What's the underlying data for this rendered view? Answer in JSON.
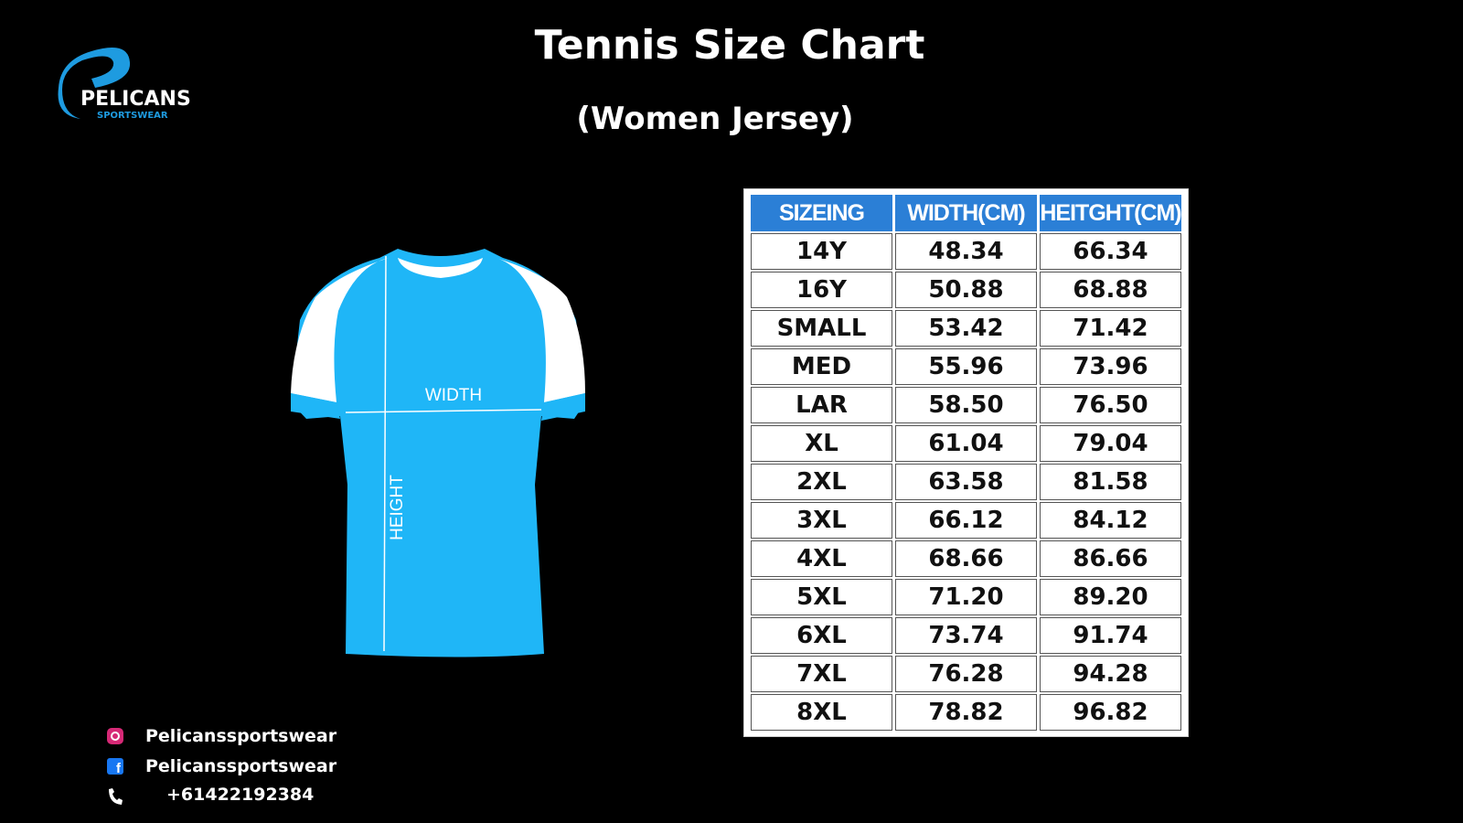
{
  "header": {
    "title": "Tennis Size Chart",
    "subtitle": "(Women Jersey)"
  },
  "logo": {
    "name": "PELICANS",
    "tagline": "SPORTSWEAR"
  },
  "jersey": {
    "width_label": "WIDTH",
    "height_label": "HEIGHT"
  },
  "table": {
    "headers": [
      "SIZEING",
      "WIDTH(CM)",
      "HEITGHT(CM)"
    ],
    "rows": [
      [
        "14Y",
        "48.34",
        "66.34"
      ],
      [
        "16Y",
        "50.88",
        "68.88"
      ],
      [
        "SMALL",
        "53.42",
        "71.42"
      ],
      [
        "MED",
        "55.96",
        "73.96"
      ],
      [
        "LAR",
        "58.50",
        "76.50"
      ],
      [
        "XL",
        "61.04",
        "79.04"
      ],
      [
        "2XL",
        "63.58",
        "81.58"
      ],
      [
        "3XL",
        "66.12",
        "84.12"
      ],
      [
        "4XL",
        "68.66",
        "86.66"
      ],
      [
        "5XL",
        "71.20",
        "89.20"
      ],
      [
        "6XL",
        "73.74",
        "91.74"
      ],
      [
        "7XL",
        "76.28",
        "94.28"
      ],
      [
        "8XL",
        "78.82",
        "96.82"
      ]
    ]
  },
  "contacts": {
    "instagram": "Pelicanssportswear",
    "facebook": "Pelicanssportswear",
    "phone": "+61422192384"
  }
}
